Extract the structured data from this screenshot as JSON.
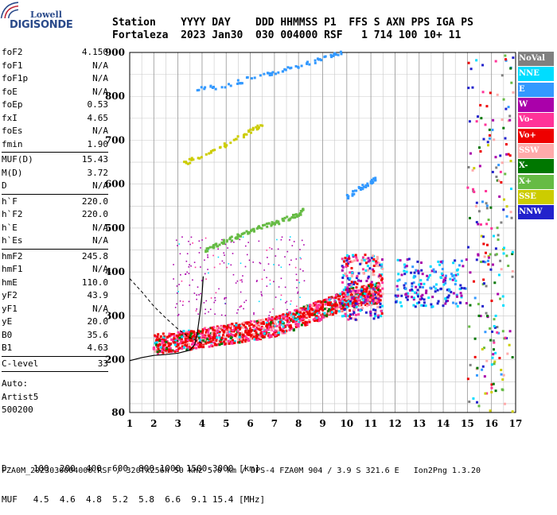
{
  "logo": {
    "line1": "Lowell",
    "line2": "DIGISONDE"
  },
  "header": {
    "row1": "Station    YYYY DAY    DDD HHMMSS P1  FFS S AXN PPS IGA PS",
    "row2": "Fortaleza  2023 Jan30  030 004000 RSF   1 714 100 10+ 11"
  },
  "params": [
    [
      [
        "foF2",
        "4.150"
      ],
      [
        "foF1",
        "N/A"
      ],
      [
        "foF1p",
        "N/A"
      ],
      [
        "foE",
        "N/A"
      ],
      [
        "foEp",
        "0.53"
      ],
      [
        "fxI",
        "4.65"
      ],
      [
        "foEs",
        "N/A"
      ],
      [
        "fmin",
        "1.90"
      ]
    ],
    [
      [
        "MUF(D)",
        "15.43"
      ],
      [
        "M(D)",
        "3.72"
      ],
      [
        "D",
        "N/A"
      ]
    ],
    [
      [
        "h`F",
        "220.0"
      ],
      [
        "h`F2",
        "220.0"
      ],
      [
        "h`E",
        "N/A"
      ],
      [
        "h`Es",
        "N/A"
      ]
    ],
    [
      [
        "hmF2",
        "245.8"
      ],
      [
        "hmF1",
        "N/A"
      ],
      [
        "hmE",
        "110.0"
      ],
      [
        "yF2",
        "43.9"
      ],
      [
        "yF1",
        "N/A"
      ],
      [
        "yE",
        "20.0"
      ],
      [
        "B0",
        "35.6"
      ],
      [
        "B1",
        "4.63"
      ]
    ],
    [
      [
        "C-level",
        "33"
      ]
    ]
  ],
  "auto": [
    "Auto:",
    "Artist5",
    "500200"
  ],
  "legend": [
    {
      "label": "NoVal",
      "color": "#808080"
    },
    {
      "label": "NNE",
      "color": "#00ddff"
    },
    {
      "label": "E",
      "color": "#3399ff"
    },
    {
      "label": "W",
      "color": "#aa00aa"
    },
    {
      "label": "Vo-",
      "color": "#ff3399"
    },
    {
      "label": "Vo+",
      "color": "#ee0000"
    },
    {
      "label": "SSW",
      "color": "#ffaaaa"
    },
    {
      "label": "X-",
      "color": "#007700"
    },
    {
      "label": "X+",
      "color": "#66bb44"
    },
    {
      "label": "SSE",
      "color": "#cccc00"
    },
    {
      "label": "NNW",
      "color": "#2222cc"
    }
  ],
  "bottom": {
    "row1": "D     100  200  400  600  800 1000 1500 3000 [km]",
    "row2": "MUF   4.5  4.6  4.8  5.2  5.8  6.6  9.1 15.4 [MHz]"
  },
  "footer": "FZA0M_2023030004000.RSF / 320fx256h 50 kHz 5.0 km / DPS-4 FZA0M 904 / 3.9 S 321.6 E   Ion2Png 1.3.20",
  "chart_data": {
    "type": "scatter",
    "xlim": [
      1,
      17
    ],
    "ylim": [
      80,
      900
    ],
    "x_ticks": [
      1,
      2,
      3,
      4,
      5,
      6,
      7,
      8,
      9,
      10,
      11,
      12,
      13,
      14,
      15,
      16,
      17
    ],
    "y_ticks": [
      80,
      200,
      300,
      400,
      500,
      600,
      700,
      800,
      900
    ],
    "grid": true,
    "x_minor_step": 0.5,
    "y_minor_step": 50,
    "traces": [
      {
        "name": "F2 trace",
        "color": "#ee0000",
        "points": [
          [
            2.0,
            222
          ],
          [
            2.5,
            224
          ],
          [
            3.0,
            228
          ],
          [
            3.5,
            232
          ],
          [
            4.0,
            236
          ],
          [
            4.5,
            240
          ],
          [
            5.0,
            244
          ],
          [
            5.5,
            248
          ],
          [
            6.0,
            252
          ],
          [
            6.5,
            256
          ],
          [
            7.0,
            262
          ],
          [
            7.5,
            270
          ],
          [
            8.0,
            280
          ],
          [
            8.5,
            292
          ],
          [
            9.0,
            300
          ],
          [
            9.5,
            312
          ],
          [
            10.0,
            325
          ],
          [
            10.5,
            330
          ],
          [
            11.0,
            335
          ],
          [
            11.4,
            340
          ]
        ]
      },
      {
        "name": "2nd hop",
        "color": "#66bb44",
        "points": [
          [
            4.0,
            445
          ],
          [
            4.5,
            458
          ],
          [
            5.0,
            470
          ],
          [
            5.5,
            482
          ],
          [
            6.0,
            492
          ],
          [
            6.5,
            502
          ],
          [
            7.0,
            510
          ],
          [
            7.5,
            520
          ],
          [
            8.0,
            530
          ],
          [
            8.2,
            540
          ]
        ]
      },
      {
        "name": "3rd hop",
        "color": "#3399ff",
        "points": [
          [
            10.0,
            570
          ],
          [
            10.5,
            588
          ],
          [
            11.0,
            605
          ],
          [
            11.2,
            612
          ]
        ]
      },
      {
        "name": "high trace",
        "color": "#3399ff",
        "points": [
          [
            3.8,
            815
          ],
          [
            5.0,
            825
          ],
          [
            6.0,
            840
          ],
          [
            7.0,
            855
          ],
          [
            8.0,
            870
          ],
          [
            9.0,
            885
          ],
          [
            9.8,
            900
          ]
        ]
      },
      {
        "name": "E-W mid",
        "color": "#cccc00",
        "points": [
          [
            3.0,
            640
          ],
          [
            4.0,
            665
          ],
          [
            5.0,
            690
          ],
          [
            6.0,
            720
          ],
          [
            6.5,
            735
          ]
        ]
      }
    ],
    "profile": [
      [
        1.0,
        198
      ],
      [
        1.5,
        205
      ],
      [
        2.0,
        210
      ],
      [
        2.5,
        212
      ],
      [
        3.0,
        215
      ],
      [
        3.5,
        222
      ],
      [
        3.7,
        235
      ],
      [
        3.8,
        260
      ],
      [
        3.9,
        300
      ],
      [
        4.0,
        350
      ],
      [
        4.05,
        390
      ]
    ],
    "dashed": [
      [
        1.0,
        385
      ],
      [
        1.5,
        355
      ],
      [
        2.0,
        322
      ],
      [
        2.5,
        295
      ],
      [
        3.0,
        270
      ],
      [
        3.5,
        250
      ],
      [
        4.0,
        238
      ]
    ]
  }
}
